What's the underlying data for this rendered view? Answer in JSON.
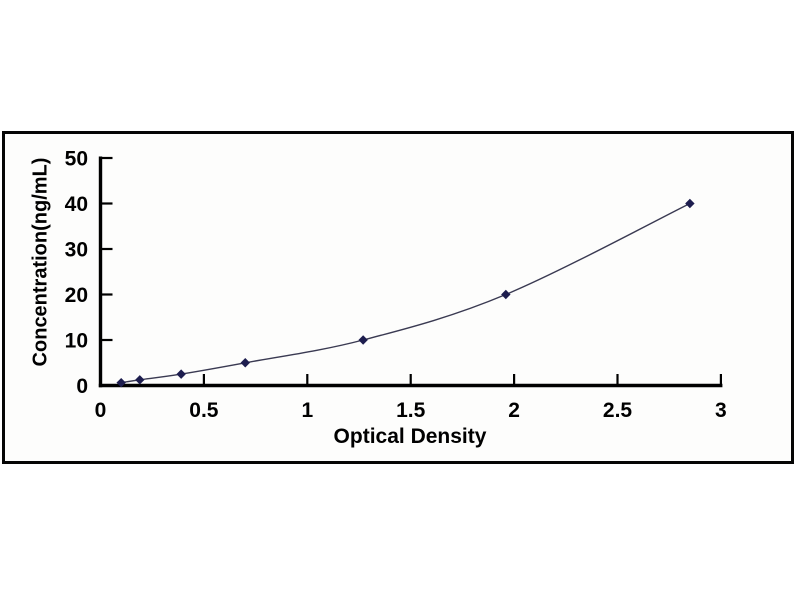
{
  "chart_data": {
    "type": "scatter",
    "subtype": "standard-curve-smooth-line",
    "title": "",
    "xlabel": "Optical Density",
    "ylabel": "Concentration(ng/mL)",
    "x": [
      0.1,
      0.19,
      0.39,
      0.7,
      1.27,
      1.96,
      2.85
    ],
    "y": [
      0.625,
      1.25,
      2.5,
      5,
      10,
      20,
      40
    ],
    "xlim": [
      0,
      3
    ],
    "ylim": [
      0,
      50
    ],
    "x_ticks": [
      0,
      0.5,
      1,
      1.5,
      2,
      2.5,
      3
    ],
    "x_tick_labels": [
      "0",
      "0.5",
      "1",
      "1.5",
      "2",
      "2.5",
      "3"
    ],
    "y_ticks": [
      0,
      10,
      20,
      30,
      40,
      50
    ],
    "y_tick_labels": [
      "0",
      "10",
      "20",
      "30",
      "40",
      "50"
    ],
    "grid": false,
    "legend": "none",
    "marker": "diamond",
    "colors": {
      "marker": "#1d1d4e",
      "line": "#3a3a52",
      "axis": "#000000",
      "text": "#000000",
      "frame_border": "#050505",
      "plot_background": "#fdfdfc",
      "page_background": "#ffffff"
    }
  }
}
